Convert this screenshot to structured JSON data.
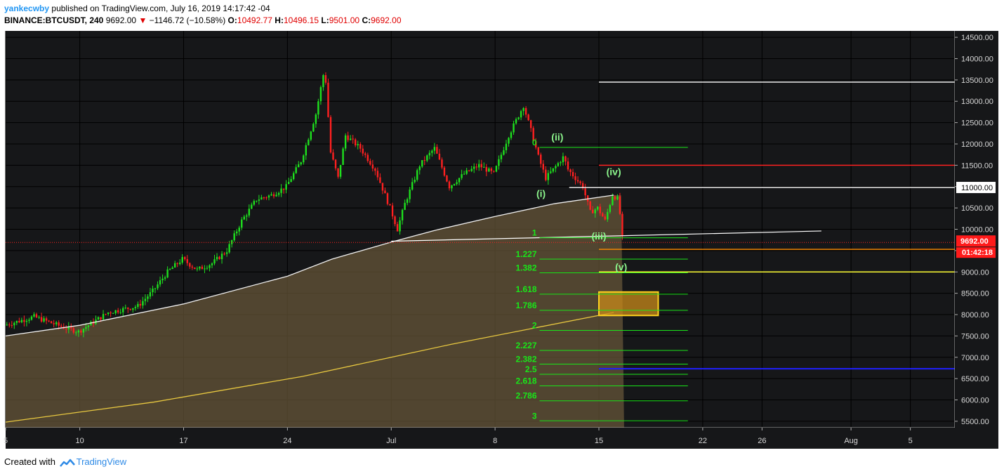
{
  "header": {
    "user": "yankecwby",
    "published": "published on TradingView.com, July 16, 2019 14:17:42 -04",
    "symbol": "BINANCE:BTCUSDT, 240",
    "last": "9692.00",
    "arrow": "▼",
    "change": "−1146.72 (−10.58%)",
    "o_label": "O:",
    "o_value": "10492.77",
    "h_label": "H:",
    "h_value": "10496.15",
    "l_label": "L:",
    "l_value": "9501.00",
    "c_label": "C:",
    "c_value": "9692.00"
  },
  "footer": {
    "created_with": "Created with",
    "brand": "TradingView"
  },
  "chart_data": {
    "type": "candlestick",
    "xlim_date": [
      "2019-06-05",
      "2019-08-08"
    ],
    "ylim": [
      5350,
      14650
    ],
    "y_ticks": [
      "14500.00",
      "14000.00",
      "13500.00",
      "13000.00",
      "12500.00",
      "12000.00",
      "11500.00",
      "11000.00",
      "10500.00",
      "10000.00",
      "9500.00",
      "9000.00",
      "8500.00",
      "8000.00",
      "7500.00",
      "7000.00",
      "6500.00",
      "6000.00",
      "5500.00"
    ],
    "x_ticks": [
      {
        "date": "2019-06-05",
        "label": "5"
      },
      {
        "date": "2019-06-10",
        "label": "10"
      },
      {
        "date": "2019-06-17",
        "label": "17"
      },
      {
        "date": "2019-06-24",
        "label": "24"
      },
      {
        "date": "2019-07-01",
        "label": "Jul"
      },
      {
        "date": "2019-07-08",
        "label": "8"
      },
      {
        "date": "2019-07-15",
        "label": "15"
      },
      {
        "date": "2019-07-22",
        "label": "22"
      },
      {
        "date": "2019-07-26",
        "label": "26"
      },
      {
        "date": "2019-08-01",
        "label": "Aug"
      },
      {
        "date": "2019-08-05",
        "label": "5"
      }
    ],
    "price_key": [
      [
        "2019-06-05",
        7750
      ],
      [
        "2019-06-07",
        7950
      ],
      [
        "2019-06-09",
        7700
      ],
      [
        "2019-06-10",
        7600
      ],
      [
        "2019-06-12",
        8050
      ],
      [
        "2019-06-14",
        8200
      ],
      [
        "2019-06-15",
        8550
      ],
      [
        "2019-06-16",
        9000
      ],
      [
        "2019-06-17",
        9300
      ],
      [
        "2019-06-18",
        9050
      ],
      [
        "2019-06-19",
        9200
      ],
      [
        "2019-06-20",
        9500
      ],
      [
        "2019-06-21",
        10200
      ],
      [
        "2019-06-22",
        10700
      ],
      [
        "2019-06-23",
        10800
      ],
      [
        "2019-06-24",
        11000
      ],
      [
        "2019-06-25",
        11600
      ],
      [
        "2019-06-26",
        12700
      ],
      [
        "2019-06-26.6",
        13800
      ],
      [
        "2019-06-27",
        11800
      ],
      [
        "2019-06-27.5",
        11200
      ],
      [
        "2019-06-28",
        12200
      ],
      [
        "2019-06-29",
        11900
      ],
      [
        "2019-06-30",
        11400
      ],
      [
        "2019-07-01",
        10500
      ],
      [
        "2019-07-01.5",
        10000
      ],
      [
        "2019-07-02",
        10600
      ],
      [
        "2019-07-03",
        11500
      ],
      [
        "2019-07-04",
        11900
      ],
      [
        "2019-07-05",
        11000
      ],
      [
        "2019-07-06",
        11300
      ],
      [
        "2019-07-07",
        11500
      ],
      [
        "2019-07-08",
        11300
      ],
      [
        "2019-07-09",
        12200
      ],
      [
        "2019-07-10",
        12900
      ],
      [
        "2019-07-10.6",
        12200
      ],
      [
        "2019-07-11",
        11700
      ],
      [
        "2019-07-11.5",
        11200
      ],
      [
        "2019-07-12",
        11400
      ],
      [
        "2019-07-12.7",
        11700
      ],
      [
        "2019-07-13",
        11400
      ],
      [
        "2019-07-14",
        11000
      ],
      [
        "2019-07-14.5",
        10400
      ],
      [
        "2019-07-15",
        10500
      ],
      [
        "2019-07-15.5",
        10200
      ],
      [
        "2019-07-16",
        10800
      ],
      [
        "2019-07-16.4",
        10700
      ],
      [
        "2019-07-16.7",
        9692
      ]
    ],
    "ma_white": [
      [
        "2019-06-05",
        7500
      ],
      [
        "2019-06-10",
        7750
      ],
      [
        "2019-06-17",
        8250
      ],
      [
        "2019-06-24",
        8900
      ],
      [
        "2019-06-27",
        9300
      ],
      [
        "2019-07-01",
        9700
      ],
      [
        "2019-07-04",
        9980
      ],
      [
        "2019-07-08",
        10300
      ],
      [
        "2019-07-12",
        10600
      ],
      [
        "2019-07-16",
        10800
      ]
    ],
    "ma_yellow": [
      [
        "2019-06-05",
        5480
      ],
      [
        "2019-06-15",
        5950
      ],
      [
        "2019-06-25",
        6550
      ],
      [
        "2019-07-05",
        7300
      ],
      [
        "2019-07-16",
        8050
      ]
    ],
    "horizontal_lines": [
      {
        "name": "white-top",
        "price": 13450,
        "from": "2019-07-15",
        "to": "2019-08-08",
        "color": "#ffffff"
      },
      {
        "name": "red",
        "price": 11500,
        "from": "2019-07-15",
        "to": "2019-08-08",
        "color": "#ff2020"
      },
      {
        "name": "white-mid",
        "price": 10980,
        "from": "2019-07-13",
        "to": "2019-08-08",
        "color": "#ffffff"
      },
      {
        "name": "orange",
        "price": 9530,
        "from": "2019-07-15",
        "to": "2019-08-08",
        "color": "#ff8c00"
      },
      {
        "name": "yellow",
        "price": 9000,
        "from": "2019-07-15",
        "to": "2019-08-08",
        "color": "#ffff33"
      },
      {
        "name": "blue",
        "price": 6730,
        "from": "2019-07-15",
        "to": "2019-08-08",
        "color": "#2020ff"
      }
    ],
    "trendline": {
      "from": [
        "2019-07-01",
        9720
      ],
      "to": [
        "2019-07-30",
        9960
      ],
      "color": "#ffffff"
    },
    "current_price": {
      "value": "9692.00",
      "countdown": "01:42:18",
      "price": 9692
    },
    "target_box": {
      "from": "2019-07-15",
      "to": "2019-07-19",
      "top": 8530,
      "bottom": 7980
    },
    "fib_levels": [
      {
        "label": "0",
        "price": 11920
      },
      {
        "label": "1",
        "price": 9800
      },
      {
        "label": "1.227",
        "price": 9300
      },
      {
        "label": "1.382",
        "price": 8980
      },
      {
        "label": "1.618",
        "price": 8480
      },
      {
        "label": "1.786",
        "price": 8100
      },
      {
        "label": "2",
        "price": 7630
      },
      {
        "label": "2.227",
        "price": 7160
      },
      {
        "label": "2.382",
        "price": 6840
      },
      {
        "label": "2.5",
        "price": 6600
      },
      {
        "label": "2.618",
        "price": 6330
      },
      {
        "label": "2.786",
        "price": 5980
      },
      {
        "label": "3",
        "price": 5510
      }
    ],
    "fib_range": {
      "from": "2019-07-11",
      "to": "2019-07-21"
    },
    "waves": [
      {
        "label": "(i)",
        "date": "2019-07-11.1",
        "price": 10760
      },
      {
        "label": "(ii)",
        "date": "2019-07-12.2",
        "price": 12080
      },
      {
        "label": "(iii)",
        "date": "2019-07-15",
        "price": 9760
      },
      {
        "label": "(iv)",
        "date": "2019-07-16",
        "price": 11270
      },
      {
        "label": "(v)",
        "date": "2019-07-16.5",
        "price": 9040
      }
    ]
  }
}
